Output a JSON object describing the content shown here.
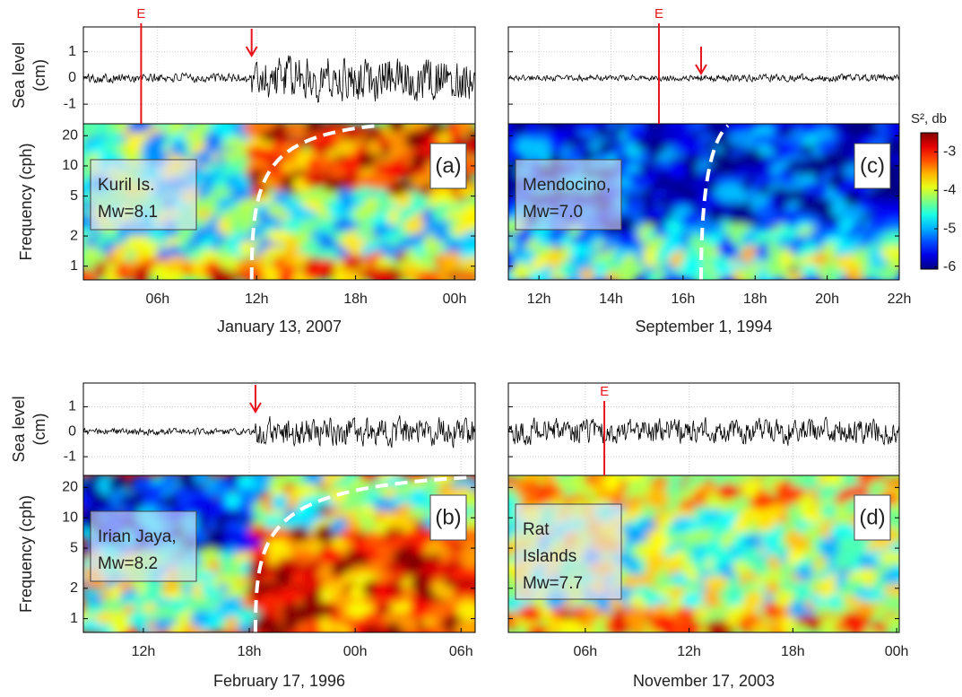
{
  "figure": {
    "sea_level_label": [
      "Sea level",
      "(cm)"
    ],
    "frequency_label": "Frequency (cph)",
    "colorbar": {
      "title": "S², db",
      "lim": [
        -6.05,
        -2.5
      ],
      "ticks": [
        -3,
        -4,
        -5,
        -6
      ],
      "colormap": "jet"
    }
  },
  "chart_data": [
    {
      "type": "spectrogram",
      "panel_label": "(a)",
      "event_lines": [
        "Kuril Is.",
        "Mw=8.1"
      ],
      "date": "January 13, 2007",
      "xlim": [
        1.5,
        25.25
      ],
      "xticks": [
        {
          "value": 6,
          "label": "06h"
        },
        {
          "value": 12,
          "label": "12h"
        },
        {
          "value": 18,
          "label": "18h"
        },
        {
          "value": 24,
          "label": "00h"
        }
      ],
      "ylim": [
        -1.75,
        1.95
      ],
      "yticks": [
        1,
        0,
        -1
      ],
      "freq_ylim": [
        0.73,
        26.3
      ],
      "freq_yticks": [
        20,
        10,
        5,
        2,
        1
      ],
      "log_scale": true,
      "show_ytick_labels": true,
      "e_marker": {
        "label": "E",
        "x": 5.0
      },
      "arrival": 11.7,
      "line_color": "#000000",
      "marker_color": "#e8141c"
    },
    {
      "type": "spectrogram",
      "panel_label": "(c)",
      "event_lines": [
        "Mendocino,",
        "Mw=7.0"
      ],
      "date": "September 1, 1994",
      "xlim": [
        11.15,
        22
      ],
      "xticks": [
        {
          "value": 12,
          "label": "12h"
        },
        {
          "value": 14,
          "label": "14h"
        },
        {
          "value": 16,
          "label": "16h"
        },
        {
          "value": 18,
          "label": "18h"
        },
        {
          "value": 20,
          "label": "20h"
        },
        {
          "value": 22,
          "label": "22h"
        }
      ],
      "ylim": [
        -1.75,
        1.95
      ],
      "yticks": [
        1,
        0,
        -1
      ],
      "freq_ylim": [
        0.73,
        26.3
      ],
      "freq_yticks": [
        20,
        10,
        5,
        2,
        1
      ],
      "log_scale": true,
      "show_ytick_labels": false,
      "e_marker": {
        "label": "E",
        "x": 15.33
      },
      "arrival": 16.5,
      "line_color": "#000000",
      "marker_color": "#e8141c"
    },
    {
      "type": "spectrogram",
      "panel_label": "(b)",
      "event_lines": [
        "Irian Jaya,",
        "Mw=8.2"
      ],
      "date": "February 17, 1996",
      "xlim": [
        8.6,
        30.8
      ],
      "xticks": [
        {
          "value": 12,
          "label": "12h"
        },
        {
          "value": 18,
          "label": "18h"
        },
        {
          "value": 24,
          "label": "00h"
        },
        {
          "value": 30,
          "label": "06h"
        }
      ],
      "ylim": [
        -1.75,
        1.95
      ],
      "yticks": [
        1,
        0,
        -1
      ],
      "freq_ylim": [
        0.73,
        26.3
      ],
      "freq_yticks": [
        20,
        10,
        5,
        2,
        1
      ],
      "log_scale": true,
      "show_ytick_labels": true,
      "arrival": 18.35,
      "line_color": "#000000",
      "marker_color": "#e8141c"
    },
    {
      "type": "spectrogram",
      "panel_label": "(d)",
      "event_lines": [
        "Rat",
        "Islands",
        "Mw=7.7"
      ],
      "date": "November 17, 2003",
      "xlim": [
        1.55,
        24.15
      ],
      "xticks": [
        {
          "value": 6,
          "label": "06h"
        },
        {
          "value": 12,
          "label": "12h"
        },
        {
          "value": 18,
          "label": "18h"
        },
        {
          "value": 24,
          "label": "00h"
        }
      ],
      "ylim": [
        -1.75,
        1.95
      ],
      "yticks": [
        1,
        0,
        -1
      ],
      "freq_ylim": [
        0.73,
        26.3
      ],
      "freq_yticks": [
        20,
        10,
        5,
        2,
        1
      ],
      "log_scale": true,
      "show_ytick_labels": false,
      "e_marker": {
        "label": "E",
        "x": 7.1
      },
      "line_color": "#000000",
      "marker_color": "#e8141c"
    }
  ]
}
